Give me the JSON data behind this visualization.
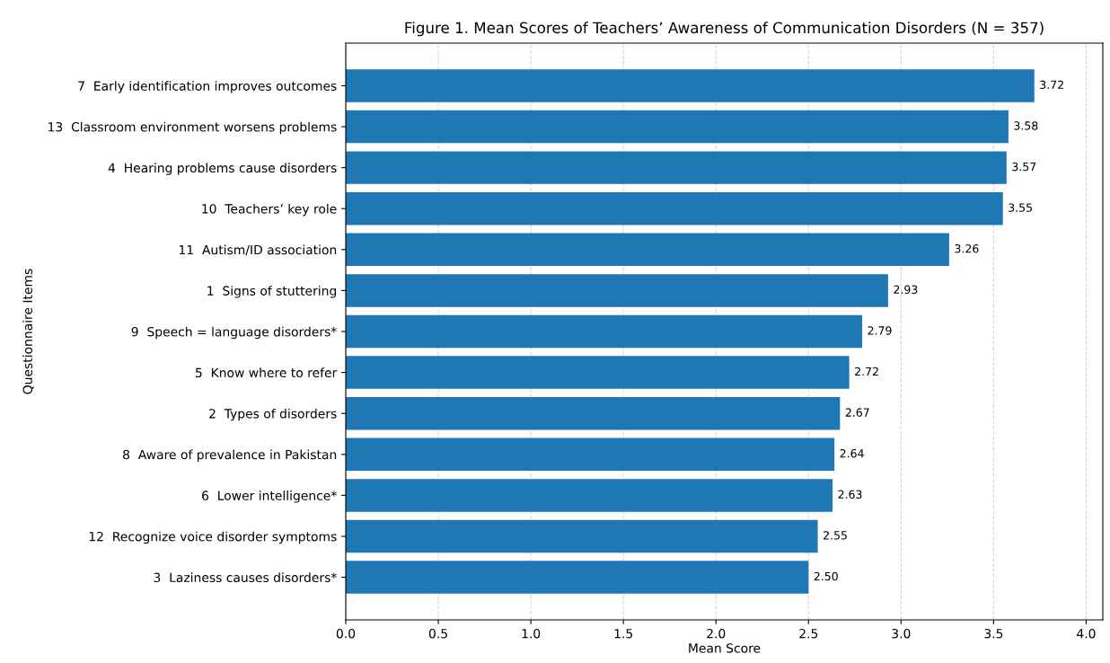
{
  "chart_data": {
    "type": "bar",
    "orientation": "horizontal",
    "title": "Figure 1. Mean Scores of Teachers’ Awareness of Communication Disorders (N = 357)",
    "xlabel": "Mean Score",
    "ylabel": "Questionnaire Items",
    "categories": [
      "7  Early identification improves outcomes",
      "13  Classroom environment worsens problems",
      "4  Hearing problems cause disorders",
      "10  Teachers’ key role",
      "11  Autism/ID association",
      "1  Signs of stuttering",
      "9  Speech = language disorders*",
      "5  Know where to refer",
      "2  Types of disorders",
      "8  Aware of prevalence in Pakistan",
      "6  Lower intelligence*",
      "12  Recognize voice disorder symptoms",
      "3  Laziness causes disorders*"
    ],
    "values": [
      3.72,
      3.58,
      3.57,
      3.55,
      3.26,
      2.93,
      2.79,
      2.72,
      2.67,
      2.64,
      2.63,
      2.55,
      2.5
    ],
    "value_labels": [
      "3.72",
      "3.58",
      "3.57",
      "3.55",
      "3.26",
      "2.93",
      "2.79",
      "2.72",
      "2.67",
      "2.64",
      "2.63",
      "2.55",
      "2.50"
    ],
    "color": "#1f77b4",
    "xlim": [
      0,
      4.09
    ],
    "xticks": [
      {
        "value": 0,
        "label": "0.0"
      },
      0.5,
      {
        "value": 1,
        "label": "1.0"
      },
      1.5,
      {
        "value": 2,
        "label": "2.0"
      },
      2.5,
      {
        "value": 3,
        "label": "3.0"
      },
      3.5,
      {
        "value": 4,
        "label": "4.0"
      }
    ],
    "grid": "x"
  }
}
